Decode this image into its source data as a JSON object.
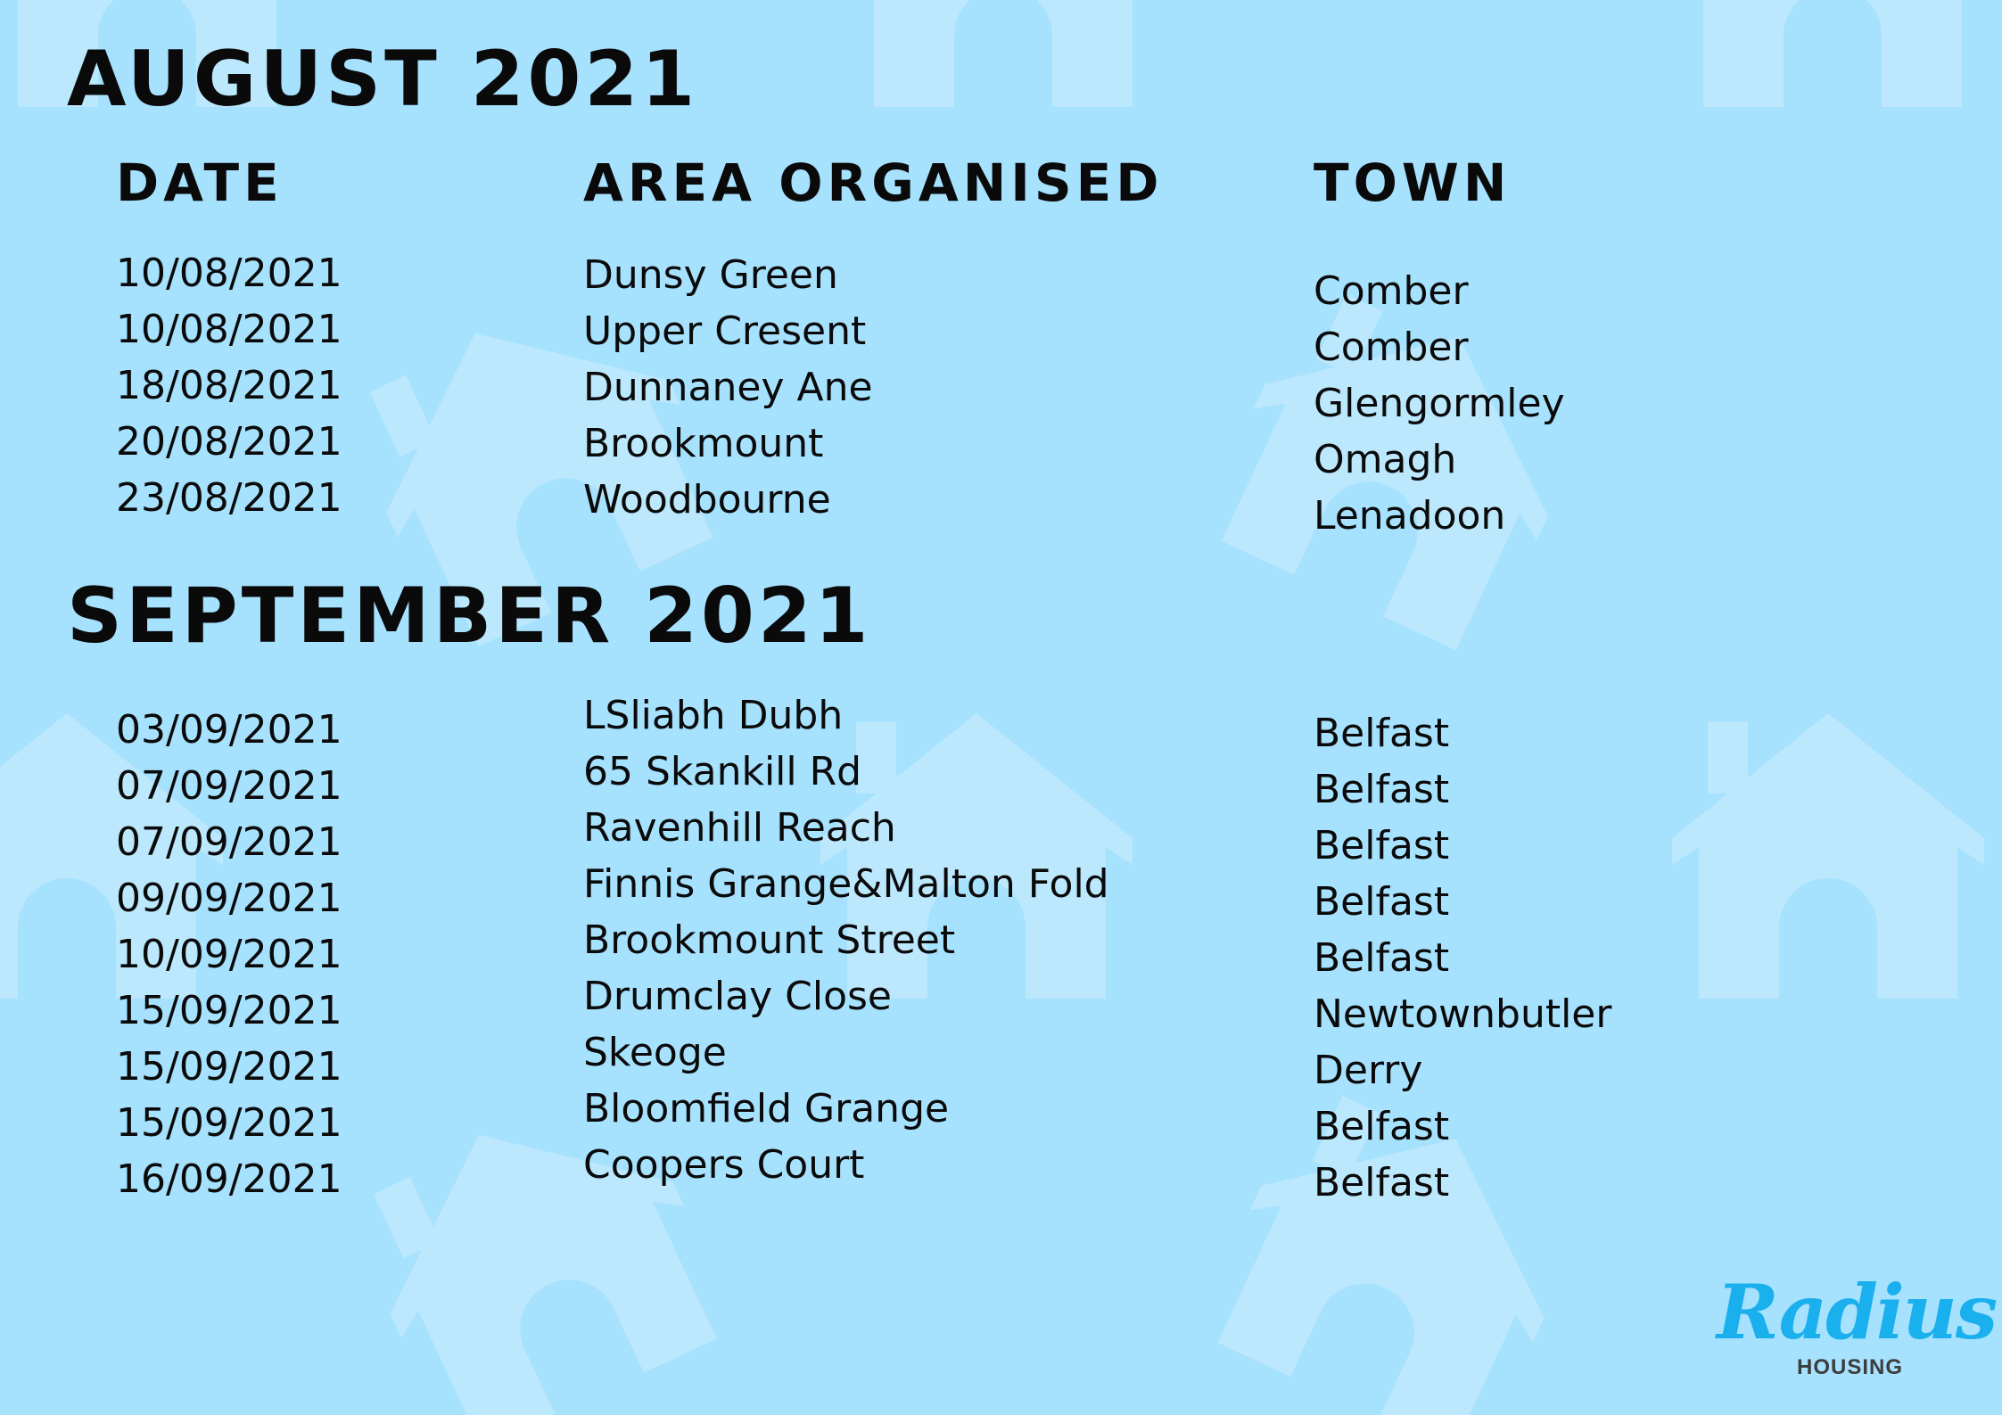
{
  "colors": {
    "background": "#a6e1fe",
    "watermark": "#bce8fd",
    "text": "#0a0a0a",
    "logo_primary": "#1ab0ee",
    "logo_secondary": "#3d3d3d"
  },
  "headers": {
    "date": "DATE",
    "area": "AREA ORGANISED",
    "town": "TOWN"
  },
  "august": {
    "title": "AUGUST 2021",
    "dates": [
      "10/08/2021",
      "10/08/2021",
      "18/08/2021",
      "20/08/2021",
      "23/08/2021"
    ],
    "areas": [
      "Dunsy Green",
      "Upper Cresent",
      "Dunnaney Ane",
      "Brookmount",
      "Woodbourne"
    ],
    "towns": [
      "Comber",
      "Comber",
      "Glengormley",
      "Omagh",
      "Lenadoon"
    ]
  },
  "september": {
    "title": "SEPTEMBER 2021",
    "dates": [
      "03/09/2021",
      "07/09/2021",
      "07/09/2021",
      "09/09/2021",
      "10/09/2021",
      "15/09/2021",
      "15/09/2021",
      "15/09/2021",
      "16/09/2021"
    ],
    "areas": [
      "LSliabh Dubh",
      "65 Skankill Rd",
      "Ravenhill Reach",
      "Finnis Grange&Malton Fold",
      "Brookmount Street",
      "Drumclay Close",
      "Skeoge",
      "Bloomfield Grange",
      "Coopers Court"
    ],
    "towns": [
      "Belfast",
      "Belfast",
      "Belfast",
      "Belfast",
      "Belfast",
      "Newtownbutler",
      "Derry",
      "Belfast",
      "Belfast"
    ]
  },
  "logo": {
    "name": "Radius",
    "sub": "HOUSING"
  }
}
